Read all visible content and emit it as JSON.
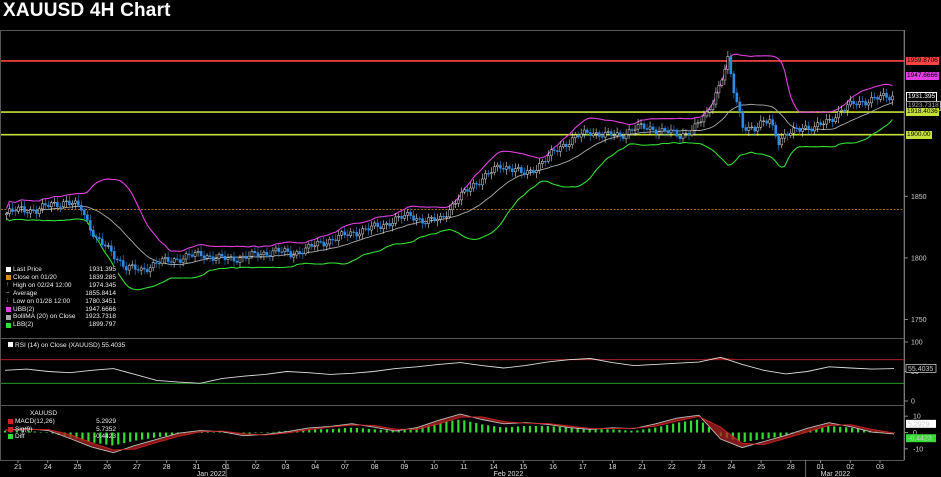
{
  "title": "XAUUSD 4H Chart",
  "legend": [
    {
      "label": "Last Price",
      "value": "1931.395",
      "color": "#ffffff",
      "marker": "box"
    },
    {
      "label": "Close on 01/20",
      "value": "1839.285",
      "color": "#e08a1e",
      "marker": "box"
    },
    {
      "label": "High on 02/24 12:00",
      "value": "1974.345",
      "color": "#cccccc",
      "marker": "up"
    },
    {
      "label": "Average",
      "value": "1855.8414",
      "color": "#cccccc",
      "marker": "dash"
    },
    {
      "label": "Low on 01/28 12:00",
      "value": "1780.3451",
      "color": "#cccccc",
      "marker": "down"
    },
    {
      "label": "UBB(2)",
      "value": "1947.6666",
      "color": "#e040e0",
      "marker": "box"
    },
    {
      "label": "BolliMA (20)  on Close",
      "value": "1923.7318",
      "color": "#aaaaaa",
      "marker": "box"
    },
    {
      "label": "LBB(2)",
      "value": "1899.797",
      "color": "#33dd33",
      "marker": "box"
    }
  ],
  "price_tags": [
    {
      "text": "1959.8706",
      "color": "#ff4444",
      "value": 1959.8706
    },
    {
      "text": "1947.6666",
      "color": "#e040e0",
      "value": 1947.6666
    },
    {
      "text": "1931.395",
      "color": "#ffffff",
      "value": 1931.395
    },
    {
      "text": "1923.7318",
      "color": "#aaaaaa",
      "value": 1923.7318
    },
    {
      "text": "1918.4036",
      "color": "#c6e03a",
      "value": 1918.4036
    },
    {
      "text": "1900.00",
      "color": "#c6e03a",
      "value": 1900.0
    }
  ],
  "y_ticks": [
    "1850",
    "1800",
    "1750"
  ],
  "rsi": {
    "label": "RSI (14)  on Close (XAUUSD) 55.4035",
    "value_tag": "55.4035",
    "ticks": [
      "100",
      "50",
      "0"
    ]
  },
  "macd": {
    "title": "XAUUSD",
    "rows": [
      {
        "label": "MACD(12,26)",
        "value": "5.2929",
        "color": "#cc2222"
      },
      {
        "label": "Sig(9)",
        "value": "5.7352",
        "color": "#cc2222"
      },
      {
        "label": "Diff",
        "value": "-0.4423",
        "color": "#33dd33"
      }
    ],
    "tags": [
      "5.2929",
      "-0.4423"
    ],
    "ticks": [
      "10",
      "0",
      "-10"
    ]
  },
  "x_axis": {
    "day_labels": [
      "21",
      "24",
      "25",
      "26",
      "27",
      "28",
      "31",
      "01",
      "02",
      "03",
      "04",
      "07",
      "08",
      "09",
      "10",
      "11",
      "14",
      "15",
      "16",
      "17",
      "18",
      "21",
      "22",
      "23",
      "24",
      "25",
      "28",
      "01",
      "02",
      "03"
    ],
    "month_labels": [
      "Jan 2022",
      "Feb 2022",
      "Mar 2022"
    ]
  },
  "chart_data": {
    "type": "candlestick",
    "title": "XAUUSD 4H Chart",
    "ylim": [
      1735,
      1985
    ],
    "horizontal_lines": [
      {
        "value": 1959.8706,
        "color": "#ff4444"
      },
      {
        "value": 1918.4036,
        "color": "#c6e03a"
      },
      {
        "value": 1900.0,
        "color": "#c6e03a"
      },
      {
        "value": 1839.285,
        "color": "#e08a1e",
        "style": "dashed"
      }
    ],
    "close_anchors": [
      [
        0,
        1836
      ],
      [
        5,
        1840
      ],
      [
        10,
        1838
      ],
      [
        15,
        1844
      ],
      [
        20,
        1845
      ],
      [
        25,
        1841
      ],
      [
        27,
        1830
      ],
      [
        30,
        1815
      ],
      [
        35,
        1805
      ],
      [
        40,
        1792
      ],
      [
        45,
        1790
      ],
      [
        50,
        1796
      ],
      [
        55,
        1798
      ],
      [
        60,
        1801
      ],
      [
        65,
        1803
      ],
      [
        70,
        1800
      ],
      [
        75,
        1799
      ],
      [
        80,
        1801
      ],
      [
        85,
        1803
      ],
      [
        90,
        1806
      ],
      [
        95,
        1803
      ],
      [
        100,
        1807
      ],
      [
        105,
        1812
      ],
      [
        110,
        1816
      ],
      [
        115,
        1820
      ],
      [
        120,
        1823
      ],
      [
        125,
        1826
      ],
      [
        130,
        1831
      ],
      [
        135,
        1835
      ],
      [
        140,
        1829
      ],
      [
        145,
        1832
      ],
      [
        150,
        1845
      ],
      [
        155,
        1858
      ],
      [
        160,
        1866
      ],
      [
        165,
        1875
      ],
      [
        170,
        1872
      ],
      [
        172,
        1868
      ],
      [
        175,
        1870
      ],
      [
        180,
        1880
      ],
      [
        185,
        1890
      ],
      [
        190,
        1898
      ],
      [
        195,
        1902
      ],
      [
        200,
        1900
      ],
      [
        205,
        1899
      ],
      [
        210,
        1906
      ],
      [
        215,
        1905
      ],
      [
        220,
        1903
      ],
      [
        225,
        1899
      ],
      [
        230,
        1906
      ],
      [
        234,
        1916
      ],
      [
        238,
        1940
      ],
      [
        241,
        1960
      ],
      [
        243,
        1935
      ],
      [
        246,
        1908
      ],
      [
        250,
        1904
      ],
      [
        255,
        1913
      ],
      [
        258,
        1895
      ],
      [
        262,
        1901
      ],
      [
        266,
        1907
      ],
      [
        270,
        1905
      ],
      [
        275,
        1912
      ],
      [
        279,
        1920
      ],
      [
        284,
        1926
      ],
      [
        288,
        1928
      ],
      [
        292,
        1930
      ],
      [
        296,
        1931.395
      ]
    ],
    "rsi_series": [
      52,
      54,
      50,
      48,
      52,
      55,
      45,
      35,
      32,
      30,
      38,
      42,
      45,
      50,
      48,
      45,
      47,
      50,
      55,
      58,
      62,
      65,
      60,
      56,
      60,
      66,
      70,
      72,
      65,
      60,
      62,
      64,
      66,
      74,
      62,
      52,
      46,
      50,
      58,
      56,
      54,
      55
    ],
    "macd_diff_series": [
      1,
      1,
      0,
      -3,
      -6,
      -8,
      -5,
      -3,
      -1,
      0,
      0,
      -1,
      0,
      1,
      2,
      2,
      3,
      2,
      1,
      3,
      6,
      8,
      5,
      3,
      4,
      4,
      3,
      2,
      2,
      1,
      3,
      6,
      8,
      -2,
      -6,
      -4,
      -2,
      1,
      4,
      3,
      1,
      0
    ]
  }
}
